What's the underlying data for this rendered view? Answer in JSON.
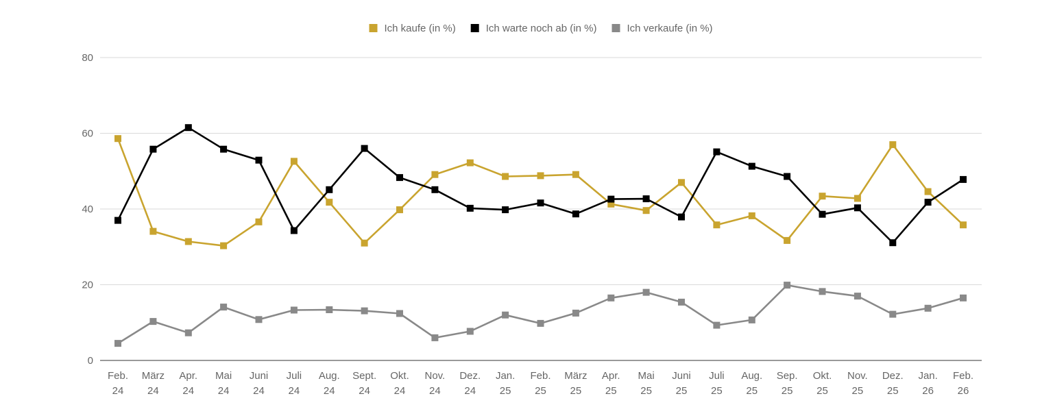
{
  "chart_data": {
    "type": "line",
    "title": "",
    "xlabel": "",
    "ylabel": "",
    "ylim": [
      0,
      80
    ],
    "yticks": [
      0,
      20,
      40,
      60,
      80
    ],
    "grid": true,
    "legend_position": "top-center",
    "categories": [
      [
        "Feb.",
        "24"
      ],
      [
        "März",
        "24"
      ],
      [
        "Apr.",
        "24"
      ],
      [
        "Mai",
        "24"
      ],
      [
        "Juni",
        "24"
      ],
      [
        "Juli",
        "24"
      ],
      [
        "Aug.",
        "24"
      ],
      [
        "Sept.",
        "24"
      ],
      [
        "Okt.",
        "24"
      ],
      [
        "Nov.",
        "24"
      ],
      [
        "Dez.",
        "24"
      ],
      [
        "Jan.",
        "25"
      ],
      [
        "Feb.",
        "25"
      ],
      [
        "März",
        "25"
      ],
      [
        "Apr.",
        "25"
      ],
      [
        "Mai",
        "25"
      ],
      [
        "Juni",
        "25"
      ],
      [
        "Juli",
        "25"
      ],
      [
        "Aug.",
        "25"
      ],
      [
        "Sep.",
        "25"
      ],
      [
        "Okt.",
        "25"
      ],
      [
        "Nov.",
        "25"
      ],
      [
        "Dez.",
        "25"
      ],
      [
        "Jan.",
        "26"
      ],
      [
        "Feb.",
        "26"
      ]
    ],
    "series": [
      {
        "name": "Ich kaufe (in %)",
        "color": "#c9a42f",
        "values": [
          58.6,
          34.1,
          31.4,
          30.3,
          36.6,
          52.6,
          41.8,
          31.0,
          39.8,
          49.1,
          52.2,
          48.6,
          48.8,
          49.1,
          41.3,
          39.6,
          47.0,
          35.8,
          38.2,
          31.7,
          43.4,
          42.8,
          57.0,
          44.6,
          35.8
        ]
      },
      {
        "name": "Ich warte noch ab (in %)",
        "color": "#000000",
        "values": [
          37.0,
          55.8,
          61.5,
          55.8,
          52.9,
          34.3,
          45.1,
          56.0,
          48.3,
          45.1,
          40.2,
          39.8,
          41.6,
          38.7,
          42.6,
          42.7,
          37.9,
          55.1,
          51.3,
          48.6,
          38.6,
          40.3,
          31.1,
          41.8,
          47.8
        ]
      },
      {
        "name": "Ich verkaufe (in %)",
        "color": "#898989",
        "values": [
          4.5,
          10.3,
          7.3,
          14.1,
          10.8,
          13.3,
          13.4,
          13.1,
          12.4,
          6.0,
          7.7,
          12.0,
          9.8,
          12.5,
          16.5,
          18.0,
          15.4,
          9.3,
          10.7,
          19.9,
          18.2,
          17.0,
          12.2,
          13.8,
          16.5
        ]
      }
    ]
  }
}
